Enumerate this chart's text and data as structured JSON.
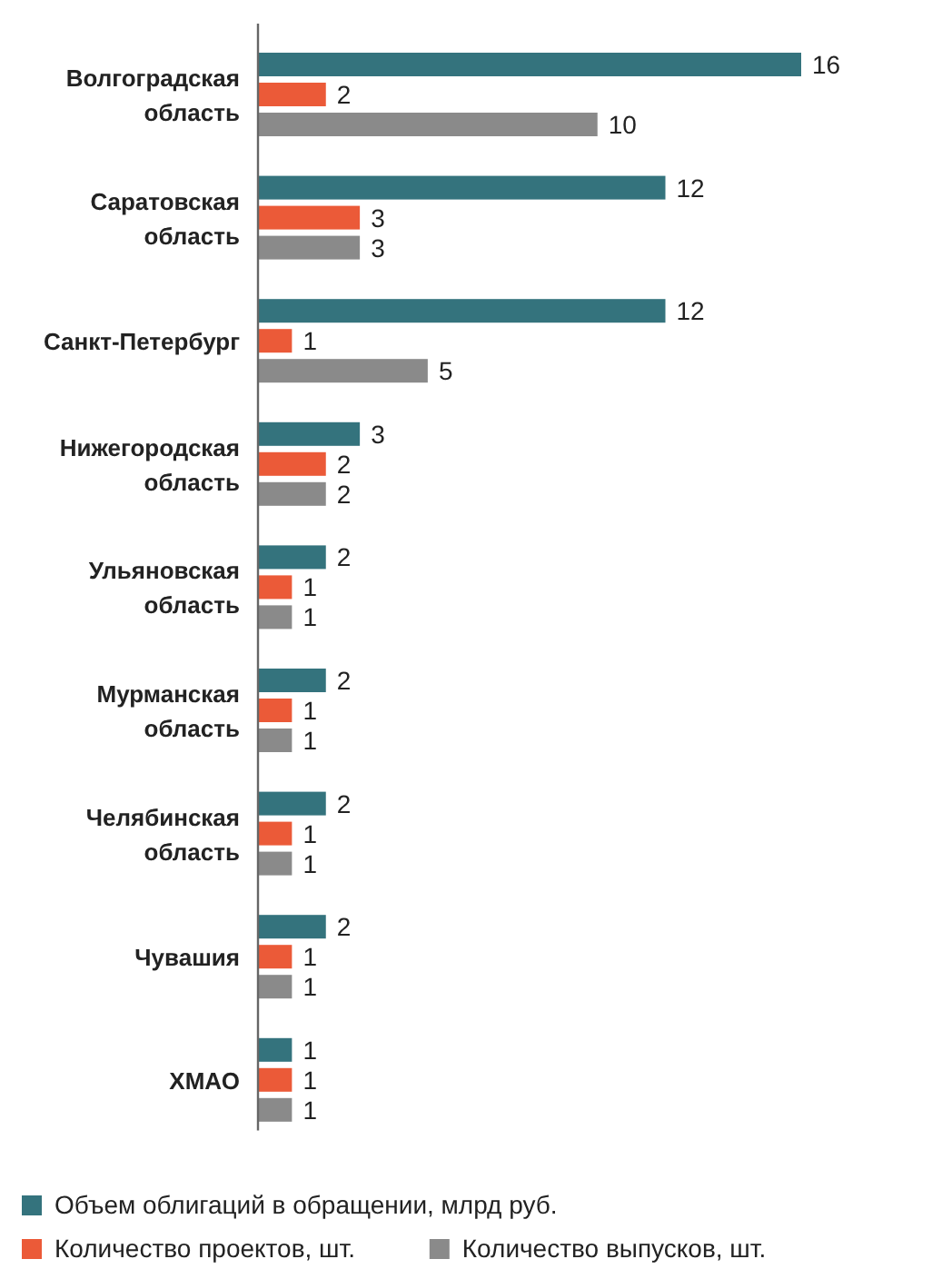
{
  "chart_data": {
    "type": "bar",
    "orientation": "horizontal",
    "data_labels": true,
    "legend": "bottom",
    "categories": [
      "Волгоградская область",
      "Саратовская область",
      "Санкт-Петербург",
      "Нижегородская область",
      "Ульяновская область",
      "Мурманская область",
      "Челябинская область",
      "Чувашия",
      "ХМАО"
    ],
    "series": [
      {
        "name": "Объем облигаций в обращении, млрд руб.",
        "color": "#34737d",
        "values": [
          16,
          12,
          12,
          3,
          2,
          2,
          2,
          2,
          1
        ]
      },
      {
        "name": "Количество проектов, шт.",
        "color": "#eb5a38",
        "values": [
          2,
          3,
          1,
          2,
          1,
          1,
          1,
          1,
          1
        ]
      },
      {
        "name": "Количество выпусков, шт.",
        "color": "#8a8a8a",
        "values": [
          10,
          3,
          5,
          2,
          1,
          1,
          1,
          1,
          1
        ]
      }
    ]
  }
}
